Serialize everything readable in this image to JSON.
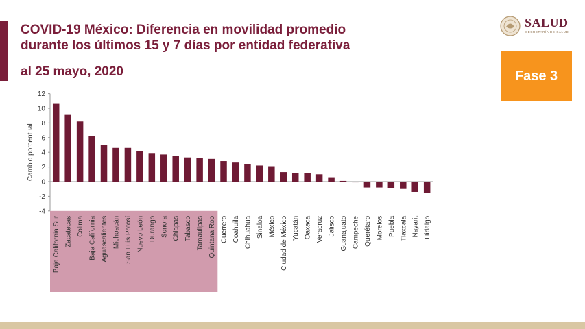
{
  "header": {
    "title_line1": "COVID-19 México: Diferencia en movilidad promedio",
    "title_line2": "durante los últimos 15 y 7 días por entidad federativa",
    "subtitle": "al 25 mayo, 2020"
  },
  "logo": {
    "name": "SALUD",
    "sub": "SECRETARÍA DE SALUD"
  },
  "badge": {
    "label": "Fase 3"
  },
  "colors": {
    "bar": "#6e1a34",
    "highlight": "#c9899f",
    "accent": "#7a1e3a",
    "badge": "#f7941d"
  },
  "chart_data": {
    "type": "bar",
    "title": "",
    "xlabel": "",
    "ylabel": "Cambio porcentual",
    "ylim": [
      -4,
      12
    ],
    "yticks": [
      -4,
      -2,
      0,
      2,
      4,
      6,
      8,
      10,
      12
    ],
    "grid": false,
    "highlight_range": [
      "Baja California Sur",
      "Quintana Roo"
    ],
    "categories": [
      "Baja California Sur",
      "Zacatecas",
      "Colima",
      "Baja California",
      "Aguascalientes",
      "Michoacán",
      "San Luis Potosí",
      "Nuevo León",
      "Durango",
      "Sonora",
      "Chiapas",
      "Tabasco",
      "Tamaulipas",
      "Quintana Roo",
      "Guerrero",
      "Coahuila",
      "Chihuahua",
      "Sinaloa",
      "México",
      "Ciudad de México",
      "Yucatán",
      "Oaxaca",
      "Veracruz",
      "Jalisco",
      "Guanajuato",
      "Campeche",
      "Querétaro",
      "Morelos",
      "Puebla",
      "Tlaxcala",
      "Nayarit",
      "Hidalgo"
    ],
    "values": [
      10.6,
      9.1,
      8.2,
      6.2,
      5.0,
      4.6,
      4.6,
      4.2,
      3.9,
      3.7,
      3.5,
      3.3,
      3.2,
      3.1,
      2.8,
      2.6,
      2.4,
      2.2,
      2.1,
      1.3,
      1.2,
      1.2,
      1.0,
      0.6,
      0.1,
      -0.1,
      -0.8,
      -0.8,
      -0.9,
      -1.0,
      -1.4,
      -1.5
    ]
  }
}
